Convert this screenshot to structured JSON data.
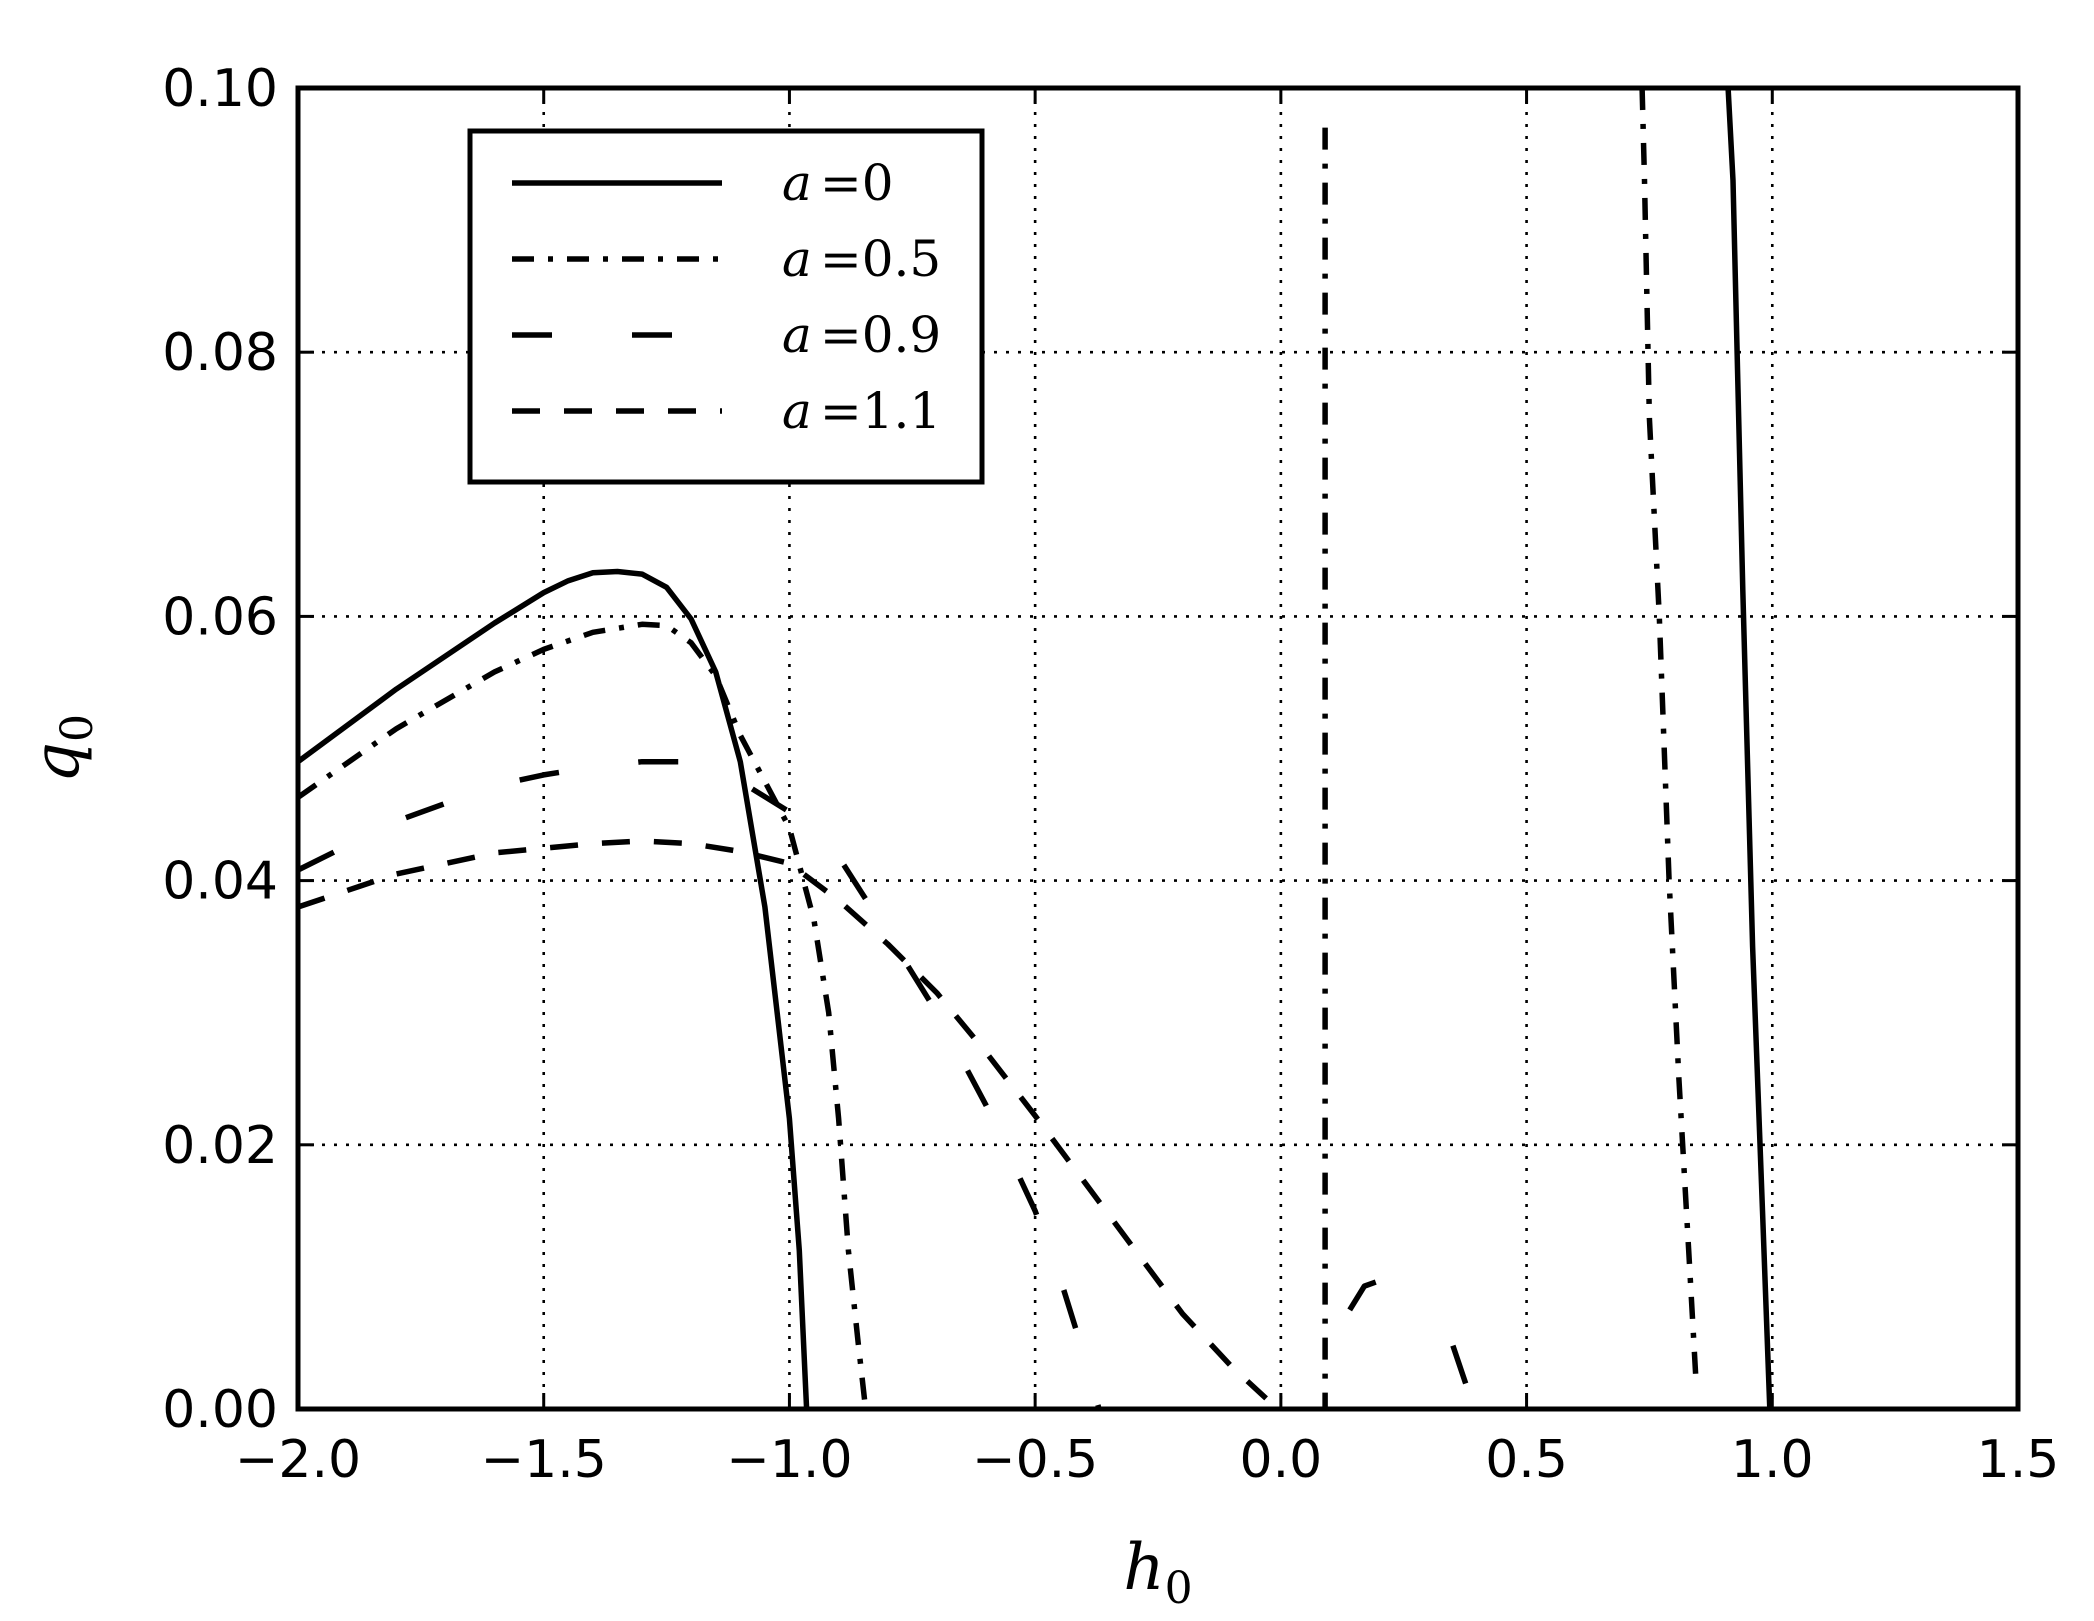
{
  "chart_data": {
    "type": "line",
    "title": "",
    "xlabel": "h",
    "xlabel_sub": "0",
    "ylabel": "q",
    "ylabel_sub": "0",
    "xlim": [
      -2.0,
      1.5
    ],
    "ylim": [
      0.0,
      0.1
    ],
    "xticks": [
      -2.0,
      -1.5,
      -1.0,
      -0.5,
      0.0,
      0.5,
      1.0,
      1.5
    ],
    "xtick_labels": [
      "−2.0",
      "−1.5",
      "−1.0",
      "−0.5",
      "0.0",
      "0.5",
      "1.0",
      "1.5"
    ],
    "yticks": [
      0.0,
      0.02,
      0.04,
      0.06,
      0.08,
      0.1
    ],
    "ytick_labels": [
      "0.00",
      "0.02",
      "0.04",
      "0.06",
      "0.08",
      "0.10"
    ],
    "grid": true,
    "legend_position": "upper-left",
    "series": [
      {
        "name": "a = 0",
        "legend_var": "a",
        "legend_eq": "=",
        "legend_val": "0",
        "style": "solid",
        "segments": [
          [
            [
              -2.0,
              0.049
            ],
            [
              -1.8,
              0.0545
            ],
            [
              -1.6,
              0.0595
            ],
            [
              -1.5,
              0.0618
            ],
            [
              -1.45,
              0.0627
            ],
            [
              -1.4,
              0.0633
            ],
            [
              -1.35,
              0.0634
            ],
            [
              -1.3,
              0.0632
            ],
            [
              -1.25,
              0.0622
            ],
            [
              -1.2,
              0.0598
            ],
            [
              -1.15,
              0.0558
            ],
            [
              -1.1,
              0.049
            ],
            [
              -1.05,
              0.038
            ],
            [
              -1.0,
              0.022
            ],
            [
              -0.98,
              0.012
            ],
            [
              -0.965,
              0.0
            ]
          ],
          [
            [
              0.91,
              0.1
            ],
            [
              0.92,
              0.093
            ],
            [
              0.94,
              0.062
            ],
            [
              0.96,
              0.035
            ],
            [
              0.98,
              0.015
            ],
            [
              0.995,
              0.0
            ]
          ]
        ]
      },
      {
        "name": "a = 0.5",
        "legend_var": "a",
        "legend_eq": "=",
        "legend_val": "0.5",
        "style": "dashdot",
        "segments": [
          [
            [
              -2.0,
              0.0463
            ],
            [
              -1.8,
              0.0515
            ],
            [
              -1.6,
              0.0558
            ],
            [
              -1.5,
              0.0575
            ],
            [
              -1.4,
              0.0588
            ],
            [
              -1.3,
              0.0594
            ],
            [
              -1.25,
              0.0593
            ],
            [
              -1.2,
              0.058
            ],
            [
              -1.15,
              0.0555
            ],
            [
              -1.1,
              0.051
            ],
            [
              -1.05,
              0.0475
            ],
            [
              -1.0,
              0.044
            ],
            [
              -0.95,
              0.037
            ],
            [
              -0.92,
              0.03
            ],
            [
              -0.9,
              0.022
            ],
            [
              -0.88,
              0.012
            ],
            [
              -0.86,
              0.005
            ],
            [
              -0.845,
              0.0
            ]
          ],
          [
            [
              0.09,
              0.097
            ],
            [
              0.09,
              0.08
            ],
            [
              0.09,
              0.06
            ],
            [
              0.09,
              0.04
            ],
            [
              0.09,
              0.02
            ],
            [
              0.09,
              0.0
            ]
          ],
          [
            [
              0.735,
              0.1
            ],
            [
              0.74,
              0.093
            ],
            [
              0.75,
              0.075
            ],
            [
              0.77,
              0.06
            ],
            [
              0.79,
              0.04
            ],
            [
              0.81,
              0.025
            ],
            [
              0.83,
              0.012
            ],
            [
              0.845,
              0.002
            ]
          ]
        ]
      },
      {
        "name": "a = 0.9",
        "legend_var": "a",
        "legend_eq": "=",
        "legend_val": "0.9",
        "style": "longdash",
        "segments": [
          [
            [
              -2.0,
              0.0408
            ],
            [
              -1.8,
              0.0445
            ],
            [
              -1.6,
              0.0472
            ],
            [
              -1.5,
              0.048
            ],
            [
              -1.4,
              0.0486
            ],
            [
              -1.3,
              0.049
            ],
            [
              -1.2,
              0.049
            ],
            [
              -1.1,
              0.0475
            ],
            [
              -1.0,
              0.0452
            ],
            [
              -0.9,
              0.0418
            ],
            [
              -0.8,
              0.036
            ],
            [
              -0.7,
              0.03
            ],
            [
              -0.6,
              0.023
            ],
            [
              -0.5,
              0.015
            ],
            [
              -0.45,
              0.01
            ],
            [
              -0.4,
              0.004
            ],
            [
              -0.37,
              0.0
            ]
          ],
          [
            [
              0.14,
              0.0075
            ],
            [
              0.17,
              0.0093
            ],
            [
              0.2,
              0.0097
            ]
          ],
          [
            [
              0.35,
              0.0048
            ],
            [
              0.38,
              0.0015
            ],
            [
              0.39,
              0.0
            ]
          ]
        ]
      },
      {
        "name": "a = 1.1",
        "legend_var": "a",
        "legend_eq": "=",
        "legend_val": "1.1",
        "style": "dashed",
        "segments": [
          [
            [
              -2.0,
              0.038
            ],
            [
              -1.8,
              0.0405
            ],
            [
              -1.6,
              0.0421
            ],
            [
              -1.4,
              0.0428
            ],
            [
              -1.3,
              0.043
            ],
            [
              -1.2,
              0.0428
            ],
            [
              -1.1,
              0.0422
            ],
            [
              -1.0,
              0.0413
            ],
            [
              -0.9,
              0.0385
            ],
            [
              -0.8,
              0.0352
            ],
            [
              -0.7,
              0.0315
            ],
            [
              -0.6,
              0.027
            ],
            [
              -0.5,
              0.0222
            ],
            [
              -0.4,
              0.0172
            ],
            [
              -0.3,
              0.0122
            ],
            [
              -0.2,
              0.0072
            ],
            [
              -0.1,
              0.0032
            ],
            [
              -0.03,
              0.0008
            ]
          ]
        ]
      }
    ]
  }
}
